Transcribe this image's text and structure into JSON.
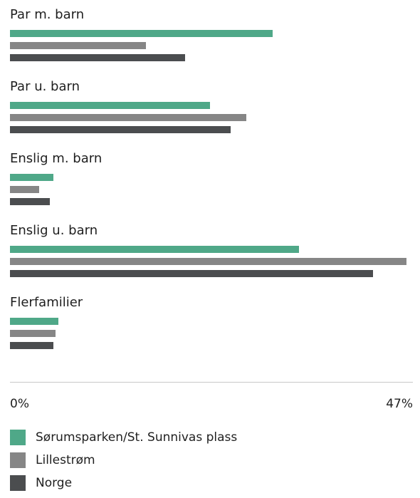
{
  "chart_data": {
    "type": "bar",
    "orientation": "horizontal",
    "categories": [
      "Par m. barn",
      "Par u. barn",
      "Enslig m. barn",
      "Enslig u. barn",
      "Flerfamilier"
    ],
    "series": [
      {
        "name": "Sørumsparken/St. Sunnivas plass",
        "color": "#4fa888",
        "values": [
          30.9,
          23.5,
          5.1,
          34.0,
          5.7
        ]
      },
      {
        "name": "Lillestrøm",
        "color": "#868686",
        "values": [
          16.0,
          27.8,
          3.4,
          46.7,
          5.4
        ]
      },
      {
        "name": "Norge",
        "color": "#4b4d4f",
        "values": [
          20.6,
          26.0,
          4.7,
          42.7,
          5.1
        ]
      }
    ],
    "xlim": [
      0,
      47
    ],
    "tick_labels": {
      "min": "0%",
      "max": "47%"
    },
    "legend_position": "bottom-left",
    "grid": false
  }
}
